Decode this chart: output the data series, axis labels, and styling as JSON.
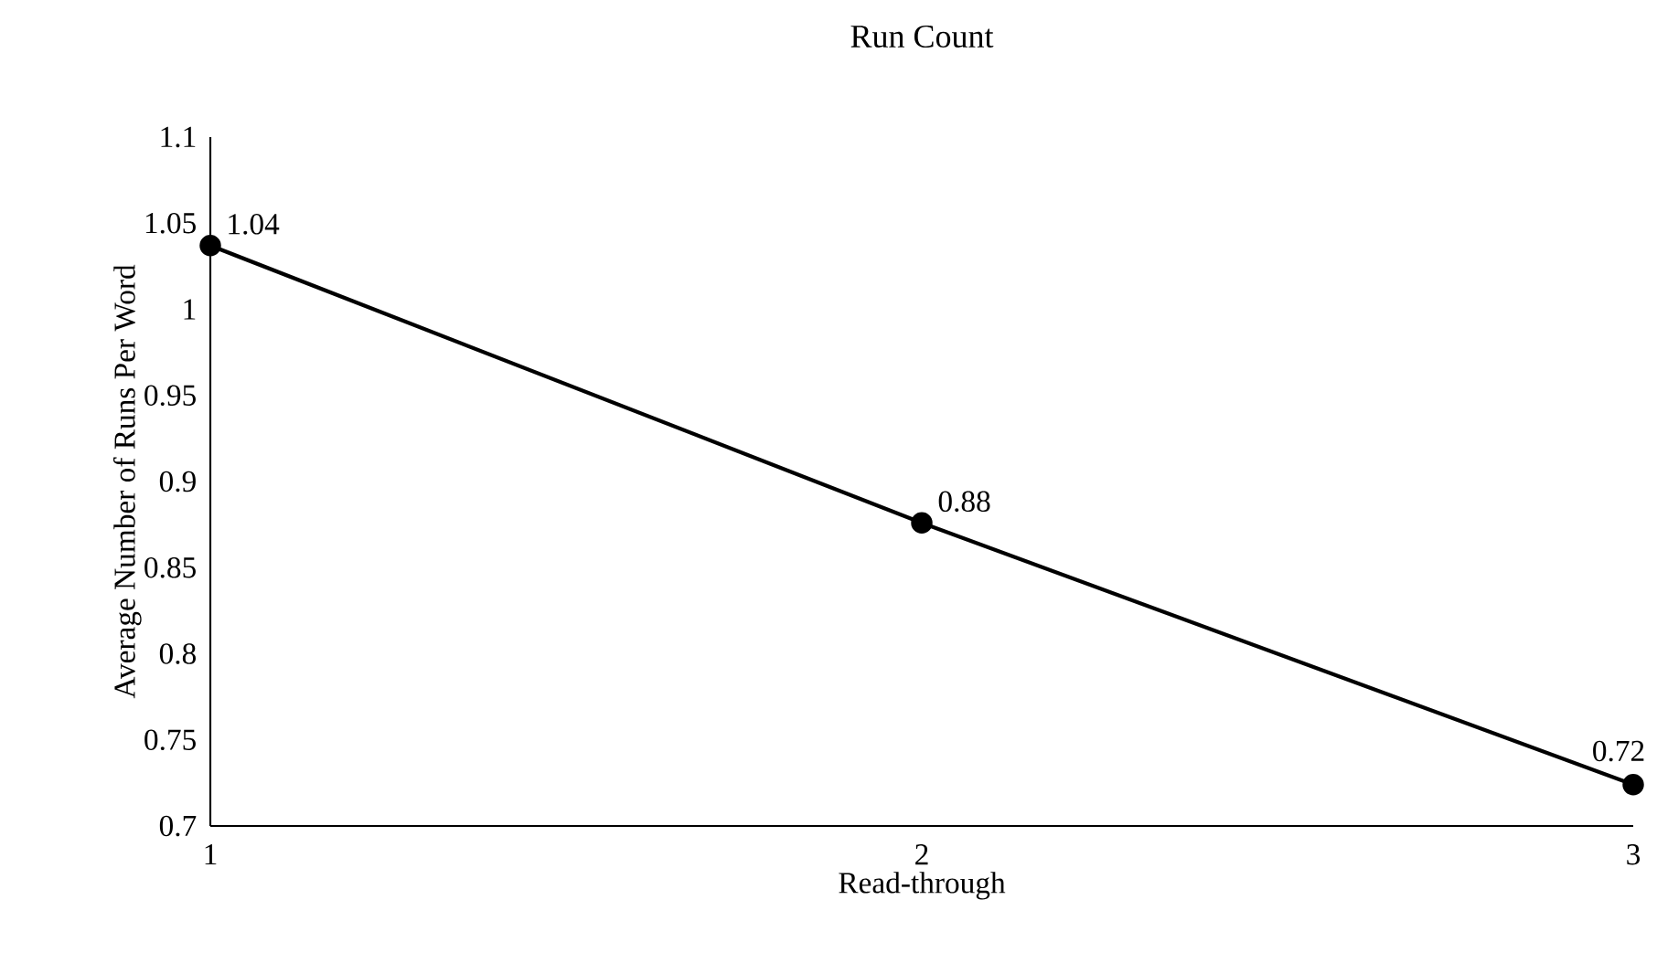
{
  "chart_data": {
    "type": "line",
    "title": "Run Count",
    "xlabel": "Read-through",
    "ylabel": "Average Number of Runs Per Word",
    "x": [
      1,
      2,
      3
    ],
    "series": [
      {
        "color": "#000000",
        "values": [
          1.037,
          0.876,
          0.724
        ],
        "value_labels": [
          "1.04",
          "0.88",
          "0.72"
        ]
      }
    ],
    "xlim": [
      1,
      3
    ],
    "xticks": [
      1,
      2,
      3
    ],
    "ylim": [
      0.7,
      1.1
    ],
    "yticks": [
      0.7,
      0.75,
      0.8,
      0.85,
      0.9,
      0.95,
      1,
      1.05,
      1.1
    ],
    "marker": "circle",
    "line_style": "solid",
    "grid": false
  }
}
